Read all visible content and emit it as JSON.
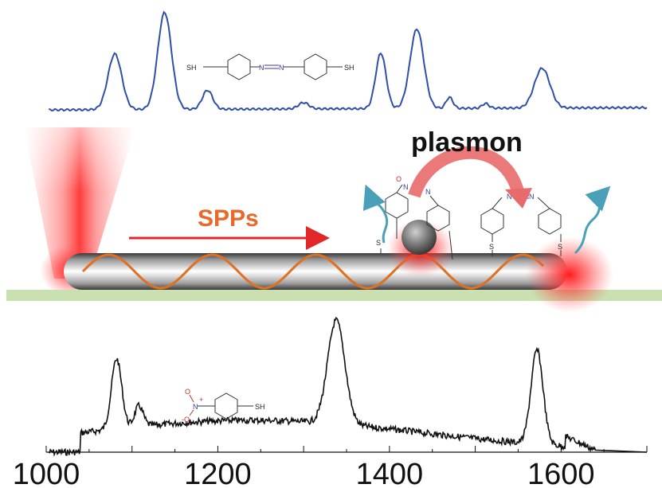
{
  "diagram": {
    "sers_label": "SPPs",
    "plasmon_label": "plasmon",
    "molecule_top": {
      "left_group": "SH",
      "right_group": "SH",
      "azo": "N=N"
    },
    "molecule_bottom": {
      "o_top": "O",
      "o_bottom": "-O",
      "n": "N",
      "sh": "SH",
      "plus": "+"
    },
    "on_wire": {
      "s": "S",
      "n": "N",
      "o": "O"
    }
  },
  "chart_data": {
    "type": "line",
    "x_ticks": [
      1000,
      1200,
      1400,
      1600
    ],
    "xlim": [
      1000,
      1700
    ],
    "series": [
      {
        "role": "upper spectrum",
        "color": "#2f4fa8",
        "peaks_x": [
          1080,
          1138,
          1188,
          1390,
          1432,
          1470,
          1578
        ]
      },
      {
        "role": "lower spectrum",
        "color": "#111111",
        "peaks_x": [
          1082,
          1108,
          1338,
          1572
        ]
      }
    ]
  },
  "colors": {
    "substrate": "#c9e0b0",
    "wave": "#e07020",
    "arrow": "#e02828",
    "hot_spot": "#ff2020",
    "emission": "#4aa0b8",
    "plasmon_arrow": "#e96a6a"
  }
}
